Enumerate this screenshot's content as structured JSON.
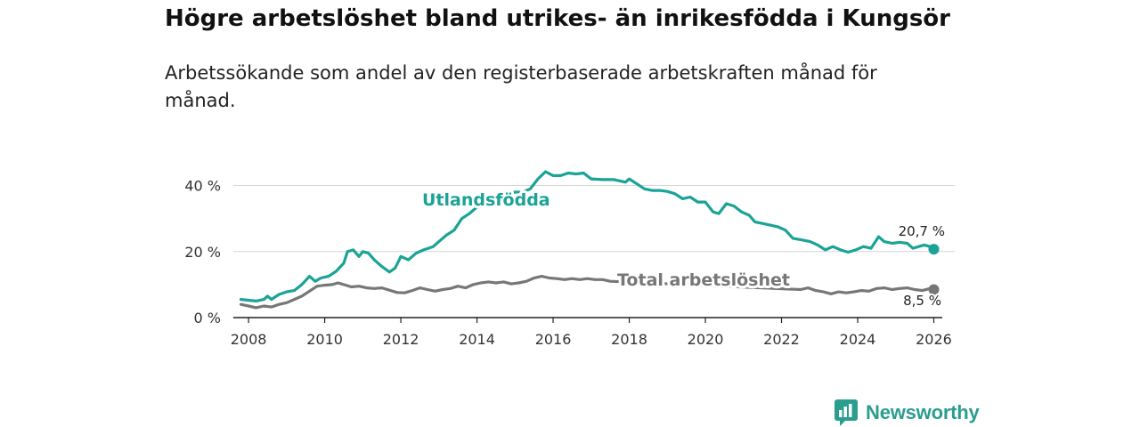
{
  "title": "Högre arbetslöshet bland utrikes- än inrikesfödda i Kungsör",
  "subtitle": "Arbetssökande som andel av den registerbaserade arbetskraften månad för månad.",
  "brand": {
    "name": "Newsworthy",
    "color": "#2a9d8f"
  },
  "chart_data": {
    "type": "line",
    "xlim": [
      2007.6,
      2026.55
    ],
    "ylim": [
      0,
      45
    ],
    "x_ticks": [
      2008,
      2010,
      2012,
      2014,
      2016,
      2018,
      2020,
      2022,
      2024,
      2026
    ],
    "x_tick_labels": [
      "2008",
      "2010",
      "2012",
      "2014",
      "2016",
      "2018",
      "2020",
      "2022",
      "2024",
      "2026"
    ],
    "y_ticks": [
      0,
      20,
      40
    ],
    "y_tick_labels": [
      "0 %",
      "20 %",
      "40 %"
    ],
    "grid": "horizontal",
    "series": [
      {
        "name": "Utlandsfödda",
        "color": "#1aa396",
        "label": "Utlandsfödda",
        "end_label": "20,7 %",
        "points": [
          [
            2007.8,
            5.5
          ],
          [
            2008.2,
            5.0
          ],
          [
            2008.4,
            5.5
          ],
          [
            2008.5,
            6.5
          ],
          [
            2008.6,
            5.5
          ],
          [
            2008.8,
            7.0
          ],
          [
            2009.0,
            7.8
          ],
          [
            2009.2,
            8.2
          ],
          [
            2009.4,
            10.0
          ],
          [
            2009.6,
            12.5
          ],
          [
            2009.75,
            11.0
          ],
          [
            2009.9,
            12.0
          ],
          [
            2010.1,
            12.5
          ],
          [
            2010.3,
            14.0
          ],
          [
            2010.5,
            16.5
          ],
          [
            2010.6,
            20.0
          ],
          [
            2010.75,
            20.5
          ],
          [
            2010.9,
            18.5
          ],
          [
            2011.0,
            20.0
          ],
          [
            2011.15,
            19.5
          ],
          [
            2011.3,
            17.5
          ],
          [
            2011.5,
            15.5
          ],
          [
            2011.7,
            13.8
          ],
          [
            2011.85,
            15.0
          ],
          [
            2012.0,
            18.5
          ],
          [
            2012.2,
            17.5
          ],
          [
            2012.4,
            19.5
          ],
          [
            2012.6,
            20.5
          ],
          [
            2012.85,
            21.5
          ],
          [
            2013.0,
            23.0
          ],
          [
            2013.2,
            25.0
          ],
          [
            2013.4,
            26.5
          ],
          [
            2013.6,
            30.0
          ],
          [
            2013.8,
            31.5
          ],
          [
            2014.0,
            33.5
          ],
          [
            2014.2,
            34.5
          ],
          [
            2014.4,
            35.5
          ],
          [
            2014.6,
            36.5
          ],
          [
            2014.8,
            37.5
          ],
          [
            2015.0,
            38.0
          ],
          [
            2015.2,
            38.0
          ],
          [
            2015.4,
            39.0
          ],
          [
            2015.6,
            42.0
          ],
          [
            2015.8,
            44.2
          ],
          [
            2016.0,
            43.0
          ],
          [
            2016.2,
            43.0
          ],
          [
            2016.4,
            43.8
          ],
          [
            2016.6,
            43.5
          ],
          [
            2016.8,
            43.8
          ],
          [
            2017.0,
            42.0
          ],
          [
            2017.3,
            41.8
          ],
          [
            2017.6,
            41.8
          ],
          [
            2017.9,
            41.0
          ],
          [
            2018.0,
            42.0
          ],
          [
            2018.2,
            40.5
          ],
          [
            2018.4,
            39.0
          ],
          [
            2018.6,
            38.5
          ],
          [
            2018.8,
            38.5
          ],
          [
            2019.0,
            38.2
          ],
          [
            2019.2,
            37.5
          ],
          [
            2019.4,
            36.0
          ],
          [
            2019.6,
            36.5
          ],
          [
            2019.8,
            35.0
          ],
          [
            2020.0,
            35.0
          ],
          [
            2020.2,
            32.0
          ],
          [
            2020.35,
            31.5
          ],
          [
            2020.55,
            34.5
          ],
          [
            2020.75,
            33.8
          ],
          [
            2020.95,
            32.0
          ],
          [
            2021.15,
            31.0
          ],
          [
            2021.3,
            29.0
          ],
          [
            2021.5,
            28.5
          ],
          [
            2021.7,
            28.0
          ],
          [
            2021.9,
            27.5
          ],
          [
            2022.1,
            26.5
          ],
          [
            2022.3,
            24.0
          ],
          [
            2022.55,
            23.5
          ],
          [
            2022.75,
            23.0
          ],
          [
            2022.95,
            22.0
          ],
          [
            2023.15,
            20.5
          ],
          [
            2023.35,
            21.5
          ],
          [
            2023.55,
            20.5
          ],
          [
            2023.75,
            19.8
          ],
          [
            2023.95,
            20.5
          ],
          [
            2024.15,
            21.5
          ],
          [
            2024.35,
            21.0
          ],
          [
            2024.55,
            24.5
          ],
          [
            2024.7,
            23.0
          ],
          [
            2024.9,
            22.5
          ],
          [
            2025.1,
            22.8
          ],
          [
            2025.3,
            22.5
          ],
          [
            2025.45,
            21.0
          ],
          [
            2025.6,
            21.5
          ],
          [
            2025.75,
            22.0
          ],
          [
            2025.9,
            21.5
          ],
          [
            2026.0,
            20.7
          ]
        ]
      },
      {
        "name": "Total arbetslöshet",
        "color": "#777777",
        "label": "Total arbetslöshet",
        "end_label": "8,5 %",
        "points": [
          [
            2007.8,
            4.0
          ],
          [
            2008.0,
            3.5
          ],
          [
            2008.2,
            3.0
          ],
          [
            2008.4,
            3.5
          ],
          [
            2008.6,
            3.2
          ],
          [
            2008.8,
            4.0
          ],
          [
            2009.0,
            4.5
          ],
          [
            2009.2,
            5.5
          ],
          [
            2009.4,
            6.5
          ],
          [
            2009.6,
            8.0
          ],
          [
            2009.8,
            9.5
          ],
          [
            2010.0,
            9.8
          ],
          [
            2010.2,
            10.0
          ],
          [
            2010.35,
            10.5
          ],
          [
            2010.5,
            10.0
          ],
          [
            2010.7,
            9.3
          ],
          [
            2010.9,
            9.5
          ],
          [
            2011.1,
            9.0
          ],
          [
            2011.3,
            8.8
          ],
          [
            2011.5,
            9.0
          ],
          [
            2011.7,
            8.3
          ],
          [
            2011.9,
            7.6
          ],
          [
            2012.1,
            7.5
          ],
          [
            2012.3,
            8.2
          ],
          [
            2012.5,
            9.0
          ],
          [
            2012.7,
            8.5
          ],
          [
            2012.9,
            8.0
          ],
          [
            2013.1,
            8.5
          ],
          [
            2013.3,
            8.8
          ],
          [
            2013.5,
            9.5
          ],
          [
            2013.7,
            9.0
          ],
          [
            2013.9,
            10.0
          ],
          [
            2014.1,
            10.5
          ],
          [
            2014.3,
            10.8
          ],
          [
            2014.5,
            10.5
          ],
          [
            2014.7,
            10.8
          ],
          [
            2014.9,
            10.2
          ],
          [
            2015.1,
            10.5
          ],
          [
            2015.3,
            11.0
          ],
          [
            2015.5,
            12.0
          ],
          [
            2015.7,
            12.5
          ],
          [
            2015.9,
            12.0
          ],
          [
            2016.1,
            11.8
          ],
          [
            2016.3,
            11.5
          ],
          [
            2016.5,
            11.8
          ],
          [
            2016.7,
            11.5
          ],
          [
            2016.9,
            11.8
          ],
          [
            2017.1,
            11.5
          ],
          [
            2017.3,
            11.5
          ],
          [
            2017.5,
            11.0
          ],
          [
            2022.5,
            8.5
          ],
          [
            2022.7,
            9.0
          ],
          [
            2022.9,
            8.2
          ],
          [
            2023.1,
            7.8
          ],
          [
            2023.3,
            7.2
          ],
          [
            2023.5,
            7.8
          ],
          [
            2023.7,
            7.5
          ],
          [
            2023.9,
            7.8
          ],
          [
            2024.1,
            8.2
          ],
          [
            2024.3,
            8.0
          ],
          [
            2024.5,
            8.8
          ],
          [
            2024.7,
            9.0
          ],
          [
            2024.9,
            8.5
          ],
          [
            2025.1,
            8.8
          ],
          [
            2025.3,
            9.0
          ],
          [
            2025.5,
            8.5
          ],
          [
            2025.7,
            8.2
          ],
          [
            2025.9,
            8.8
          ],
          [
            2026.0,
            8.5
          ]
        ]
      }
    ]
  }
}
